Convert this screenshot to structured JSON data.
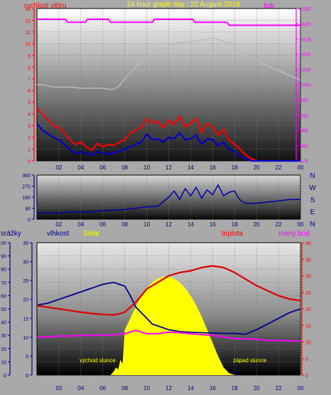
{
  "chart_data": [
    {
      "type": "line",
      "title": "24 hour graph day : 22 August 2018",
      "x_ticks": [
        "02",
        "04",
        "06",
        "08",
        "10",
        "12",
        "14",
        "16",
        "18",
        "20",
        "22",
        "00"
      ],
      "xlim": [
        0,
        24
      ],
      "y_left": {
        "label": "rychlost větru",
        "ticks": [
          "0",
          "1",
          "2",
          "3",
          "4",
          "5",
          "6",
          "7",
          "8",
          "9",
          "10",
          "11",
          "12",
          "13"
        ],
        "ylim": [
          0,
          13
        ]
      },
      "y_right": {
        "label": "tlak",
        "ticks": [
          "975",
          "980",
          "985",
          "990",
          "995",
          "1000",
          "1005",
          "1010",
          "1015",
          "1020",
          "1025"
        ],
        "ylim": [
          975,
          1025
        ]
      },
      "series": [
        {
          "name": "tlak",
          "color": "#ff00ff",
          "axis": "right",
          "x": [
            0,
            2.6,
            2.8,
            4.4,
            4.6,
            6.5,
            6.7,
            10.5,
            10.7,
            14.2,
            14.4,
            17.3,
            17.5,
            24
          ],
          "values": [
            1021.5,
            1021.5,
            1020.5,
            1020.5,
            1021.5,
            1021.5,
            1020.5,
            1020.5,
            1021.5,
            1021.5,
            1020.5,
            1020.5,
            1019.5,
            1019.5
          ]
        },
        {
          "name": "",
          "color": "#bdbdbd",
          "axis": "left",
          "x": [
            0,
            0.5,
            1.5,
            2.0,
            3.0,
            4.0,
            5.0,
            6.0,
            6.5,
            7.0,
            7.5,
            8.0,
            9.0,
            10.0,
            11.0,
            12.0,
            13.0,
            14.0,
            15.0,
            16.0,
            17.0,
            18.0,
            18.5,
            19.0,
            20.0,
            21.0,
            22.0,
            23.0,
            24.0
          ],
          "values": [
            6.5,
            6.5,
            6.3,
            6.3,
            6.3,
            6.2,
            6.2,
            6.2,
            6.1,
            6.1,
            6.4,
            7.0,
            8.0,
            8.8,
            9.4,
            9.8,
            10.1,
            10.2,
            10.3,
            10.5,
            10.2,
            9.8,
            9.4,
            9.0,
            8.6,
            8.1,
            7.7,
            7.3,
            6.9
          ]
        },
        {
          "name": "",
          "color": "#ff0000",
          "axis": "left",
          "x": [
            0,
            0.5,
            1.0,
            1.5,
            2.0,
            2.5,
            3.0,
            3.5,
            4.0,
            4.5,
            5.0,
            5.5,
            6.0,
            6.5,
            7.0,
            7.5,
            8.0,
            8.5,
            9.0,
            9.5,
            10.0,
            10.5,
            11.0,
            11.5,
            12.0,
            12.5,
            13.0,
            13.5,
            14.0,
            14.5,
            15.0,
            15.5,
            16.0,
            16.5,
            17.0,
            17.5,
            18.0,
            18.5,
            19.0,
            19.5,
            20.0,
            24.0
          ],
          "values": [
            4.5,
            4.0,
            3.5,
            3.0,
            2.8,
            2.4,
            1.8,
            1.4,
            1.6,
            1.2,
            0.9,
            1.5,
            1.2,
            1.4,
            1.3,
            1.6,
            1.8,
            2.4,
            2.6,
            2.9,
            3.6,
            3.2,
            3.4,
            2.8,
            3.5,
            3.1,
            3.8,
            2.9,
            3.2,
            3.6,
            2.4,
            3.2,
            2.9,
            2.2,
            2.7,
            1.8,
            1.4,
            1.0,
            0.5,
            0.2,
            0.0,
            0.0
          ]
        },
        {
          "name": "",
          "color": "#0000cd",
          "axis": "left",
          "x": [
            0,
            0.5,
            1.0,
            1.5,
            2.0,
            2.5,
            3.0,
            3.5,
            4.0,
            4.5,
            5.0,
            5.5,
            6.0,
            6.5,
            7.0,
            7.5,
            8.0,
            8.5,
            9.0,
            9.5,
            10.0,
            10.5,
            11.0,
            11.5,
            12.0,
            12.5,
            13.0,
            13.5,
            14.0,
            14.5,
            15.0,
            15.5,
            16.0,
            16.5,
            17.0,
            17.5,
            18.0,
            18.5,
            19.0,
            19.5,
            20.0,
            24.0
          ],
          "values": [
            3.2,
            2.6,
            2.3,
            2.0,
            1.8,
            1.4,
            1.0,
            0.6,
            0.8,
            0.6,
            0.5,
            0.8,
            0.6,
            0.6,
            0.7,
            0.8,
            1.0,
            1.2,
            1.4,
            1.6,
            2.3,
            1.8,
            1.9,
            1.6,
            2.0,
            1.9,
            2.4,
            1.8,
            1.9,
            2.2,
            1.4,
            1.9,
            1.8,
            1.3,
            1.6,
            1.0,
            0.8,
            0.4,
            0.2,
            0.0,
            0.0,
            0.0
          ]
        }
      ]
    },
    {
      "type": "line",
      "x_ticks": [
        "02",
        "04",
        "06",
        "08",
        "10",
        "12",
        "14",
        "16",
        "18",
        "20",
        "22",
        "00"
      ],
      "xlim": [
        0,
        24
      ],
      "y_left": {
        "ticks": [
          "0",
          "90",
          "180",
          "270",
          "360"
        ],
        "ylim": [
          0,
          360
        ]
      },
      "direction_labels": [
        "N",
        "W",
        "S",
        "E",
        "N"
      ],
      "series": [
        {
          "name": "",
          "color": "#0000aa",
          "x": [
            0,
            1,
            2,
            3,
            4,
            5,
            6,
            7,
            8,
            9,
            10,
            11,
            12,
            12.5,
            13,
            13.5,
            14,
            14.5,
            15,
            15.5,
            16,
            16.5,
            17,
            17.5,
            18,
            18.3,
            18.6,
            19,
            20,
            21,
            22,
            23,
            24
          ],
          "values": [
            50,
            55,
            48,
            60,
            58,
            62,
            70,
            75,
            80,
            90,
            100,
            105,
            180,
            230,
            160,
            250,
            190,
            260,
            170,
            240,
            200,
            280,
            190,
            220,
            230,
            180,
            150,
            130,
            130,
            140,
            150,
            160,
            160
          ]
        }
      ]
    },
    {
      "type": "line",
      "x_ticks": [
        "02",
        "04",
        "06",
        "08",
        "10",
        "12",
        "14",
        "16",
        "18",
        "20",
        "22",
        "00"
      ],
      "xlim": [
        0,
        24
      ],
      "axes": [
        {
          "label": "srážky",
          "ticks": [
            "0",
            "10",
            "20",
            "30",
            "40",
            "50",
            "60",
            "70",
            "80",
            "90",
            "100"
          ],
          "ylim": [
            0,
            100
          ]
        },
        {
          "label": "vlhkost",
          "ticks": [
            "0",
            "5",
            "10",
            "15",
            "20",
            "25",
            "30",
            "35"
          ],
          "ylim": [
            0,
            35
          ]
        },
        {
          "label": "teplota",
          "ticks": [
            "0",
            "5",
            "10",
            "15",
            "20",
            "25",
            "30",
            "35",
            "40"
          ],
          "ylim": [
            0,
            40
          ]
        }
      ],
      "legend": [
        "srážky",
        "vlhkost",
        "Solar",
        "teplota",
        "rosný bod"
      ],
      "annotations": [
        "východ slunce",
        "západ slunce"
      ],
      "series": [
        {
          "name": "Solar",
          "color": "#ffff00",
          "type": "area",
          "axis": "vlhkost",
          "x": [
            6.7,
            7.0,
            7.2,
            7.4,
            7.6,
            7.8,
            8.0,
            8.5,
            9.0,
            9.5,
            10.0,
            10.5,
            11.0,
            11.5,
            12.0,
            12.5,
            13.0,
            13.5,
            14.0,
            14.5,
            15.0,
            15.5,
            16.0,
            16.5,
            17.0,
            17.5,
            18.0
          ],
          "values": [
            0,
            1,
            2,
            1.5,
            4,
            3,
            12,
            15,
            18,
            21,
            23,
            24.5,
            25.5,
            26,
            26,
            25.5,
            24.5,
            23,
            21,
            18.5,
            15.5,
            12,
            8.5,
            5,
            2,
            0.5,
            0
          ]
        },
        {
          "name": "vlhkost",
          "color": "#00008b",
          "axis": "vlhkost",
          "x": [
            0,
            1,
            2,
            3,
            4,
            5,
            6,
            7,
            7.5,
            8,
            8.5,
            9,
            10,
            10.5,
            11,
            12,
            13,
            14,
            15,
            16,
            17,
            18,
            19,
            20,
            21,
            22,
            23,
            24
          ],
          "values": [
            18.5,
            19,
            20,
            21,
            22,
            23,
            24,
            24.5,
            24,
            23.5,
            21,
            18,
            15,
            13.5,
            13,
            12,
            11.5,
            11.3,
            11.2,
            11.1,
            11,
            11,
            10.8,
            12,
            13.5,
            15,
            16.5,
            17.5
          ]
        },
        {
          "name": "teplota",
          "color": "#dd0000",
          "axis": "teplota",
          "x": [
            0,
            1,
            2,
            3,
            4,
            5,
            6,
            7,
            7.5,
            8,
            8.5,
            9,
            9.5,
            10,
            11,
            12,
            13,
            14,
            15,
            16,
            17,
            18,
            19,
            20,
            21,
            22,
            23,
            24
          ],
          "values": [
            21,
            20.5,
            20,
            19.5,
            19,
            18.6,
            18.3,
            18.2,
            18.5,
            19,
            20.5,
            22,
            24,
            26,
            28,
            30,
            31,
            31.5,
            32.5,
            33,
            32.5,
            31,
            29,
            27,
            25.5,
            24,
            23,
            22.5
          ]
        },
        {
          "name": "rosný bod",
          "color": "#ff00ff",
          "axis": "teplota",
          "x": [
            0,
            1,
            2,
            3,
            4,
            5,
            6,
            7,
            8,
            9,
            10,
            11,
            12,
            13,
            14,
            15,
            16,
            17,
            18,
            19,
            20,
            21,
            22,
            23,
            24
          ],
          "values": [
            11.5,
            11.5,
            11.8,
            11.8,
            12,
            12,
            12,
            12.2,
            12.5,
            13.5,
            12.5,
            12.5,
            13,
            12.8,
            12.5,
            12.2,
            12,
            11.5,
            11,
            11,
            10.8,
            10.5,
            10.5,
            10.3,
            10.3
          ]
        }
      ]
    }
  ]
}
